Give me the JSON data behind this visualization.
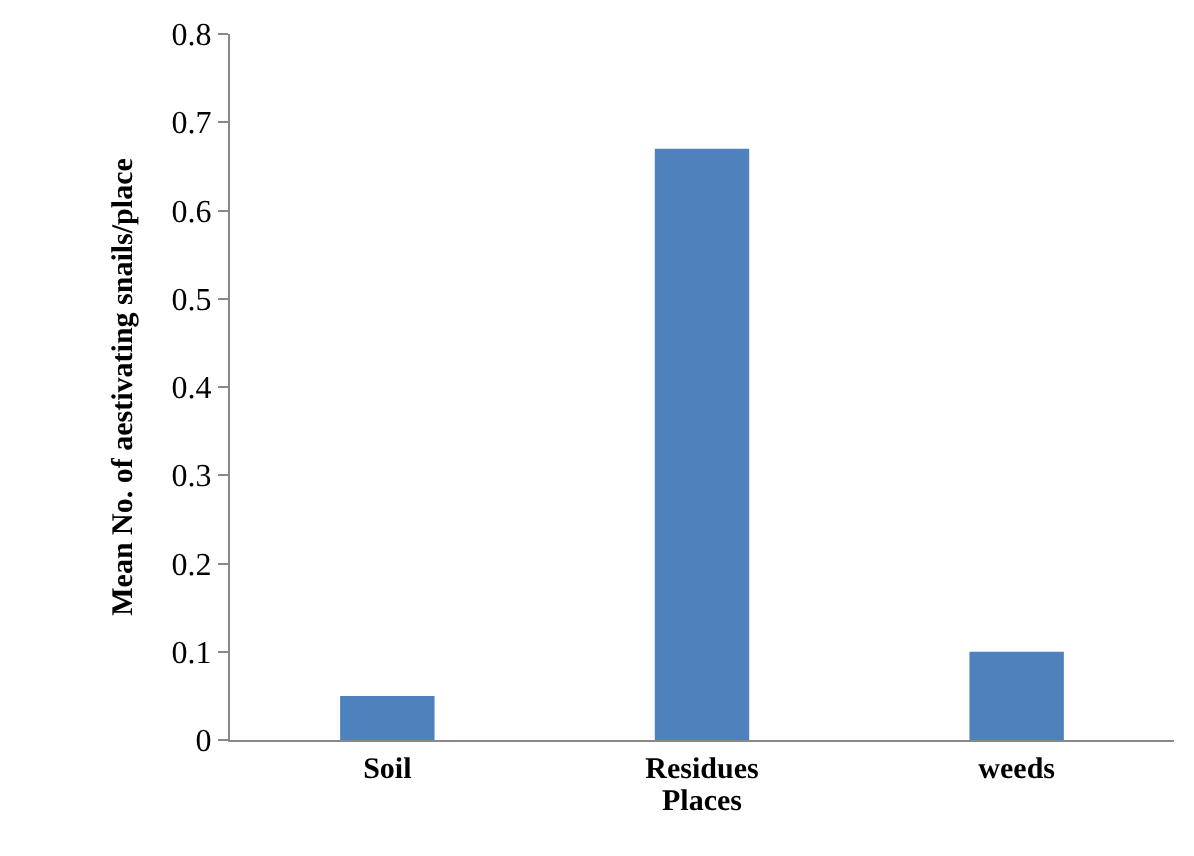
{
  "chart_data": {
    "type": "bar",
    "xlabel": "Places",
    "ylabel": "Mean No. of aestivating snails/place",
    "categories": [
      "Soil",
      "Residues",
      "weeds"
    ],
    "values": [
      0.05,
      0.67,
      0.1
    ],
    "color": "#4f81bd",
    "ylim": [
      0,
      0.8
    ],
    "yticks": [
      0,
      0.1,
      0.2,
      0.3,
      0.4,
      0.5,
      0.6,
      0.7,
      0.8
    ]
  }
}
